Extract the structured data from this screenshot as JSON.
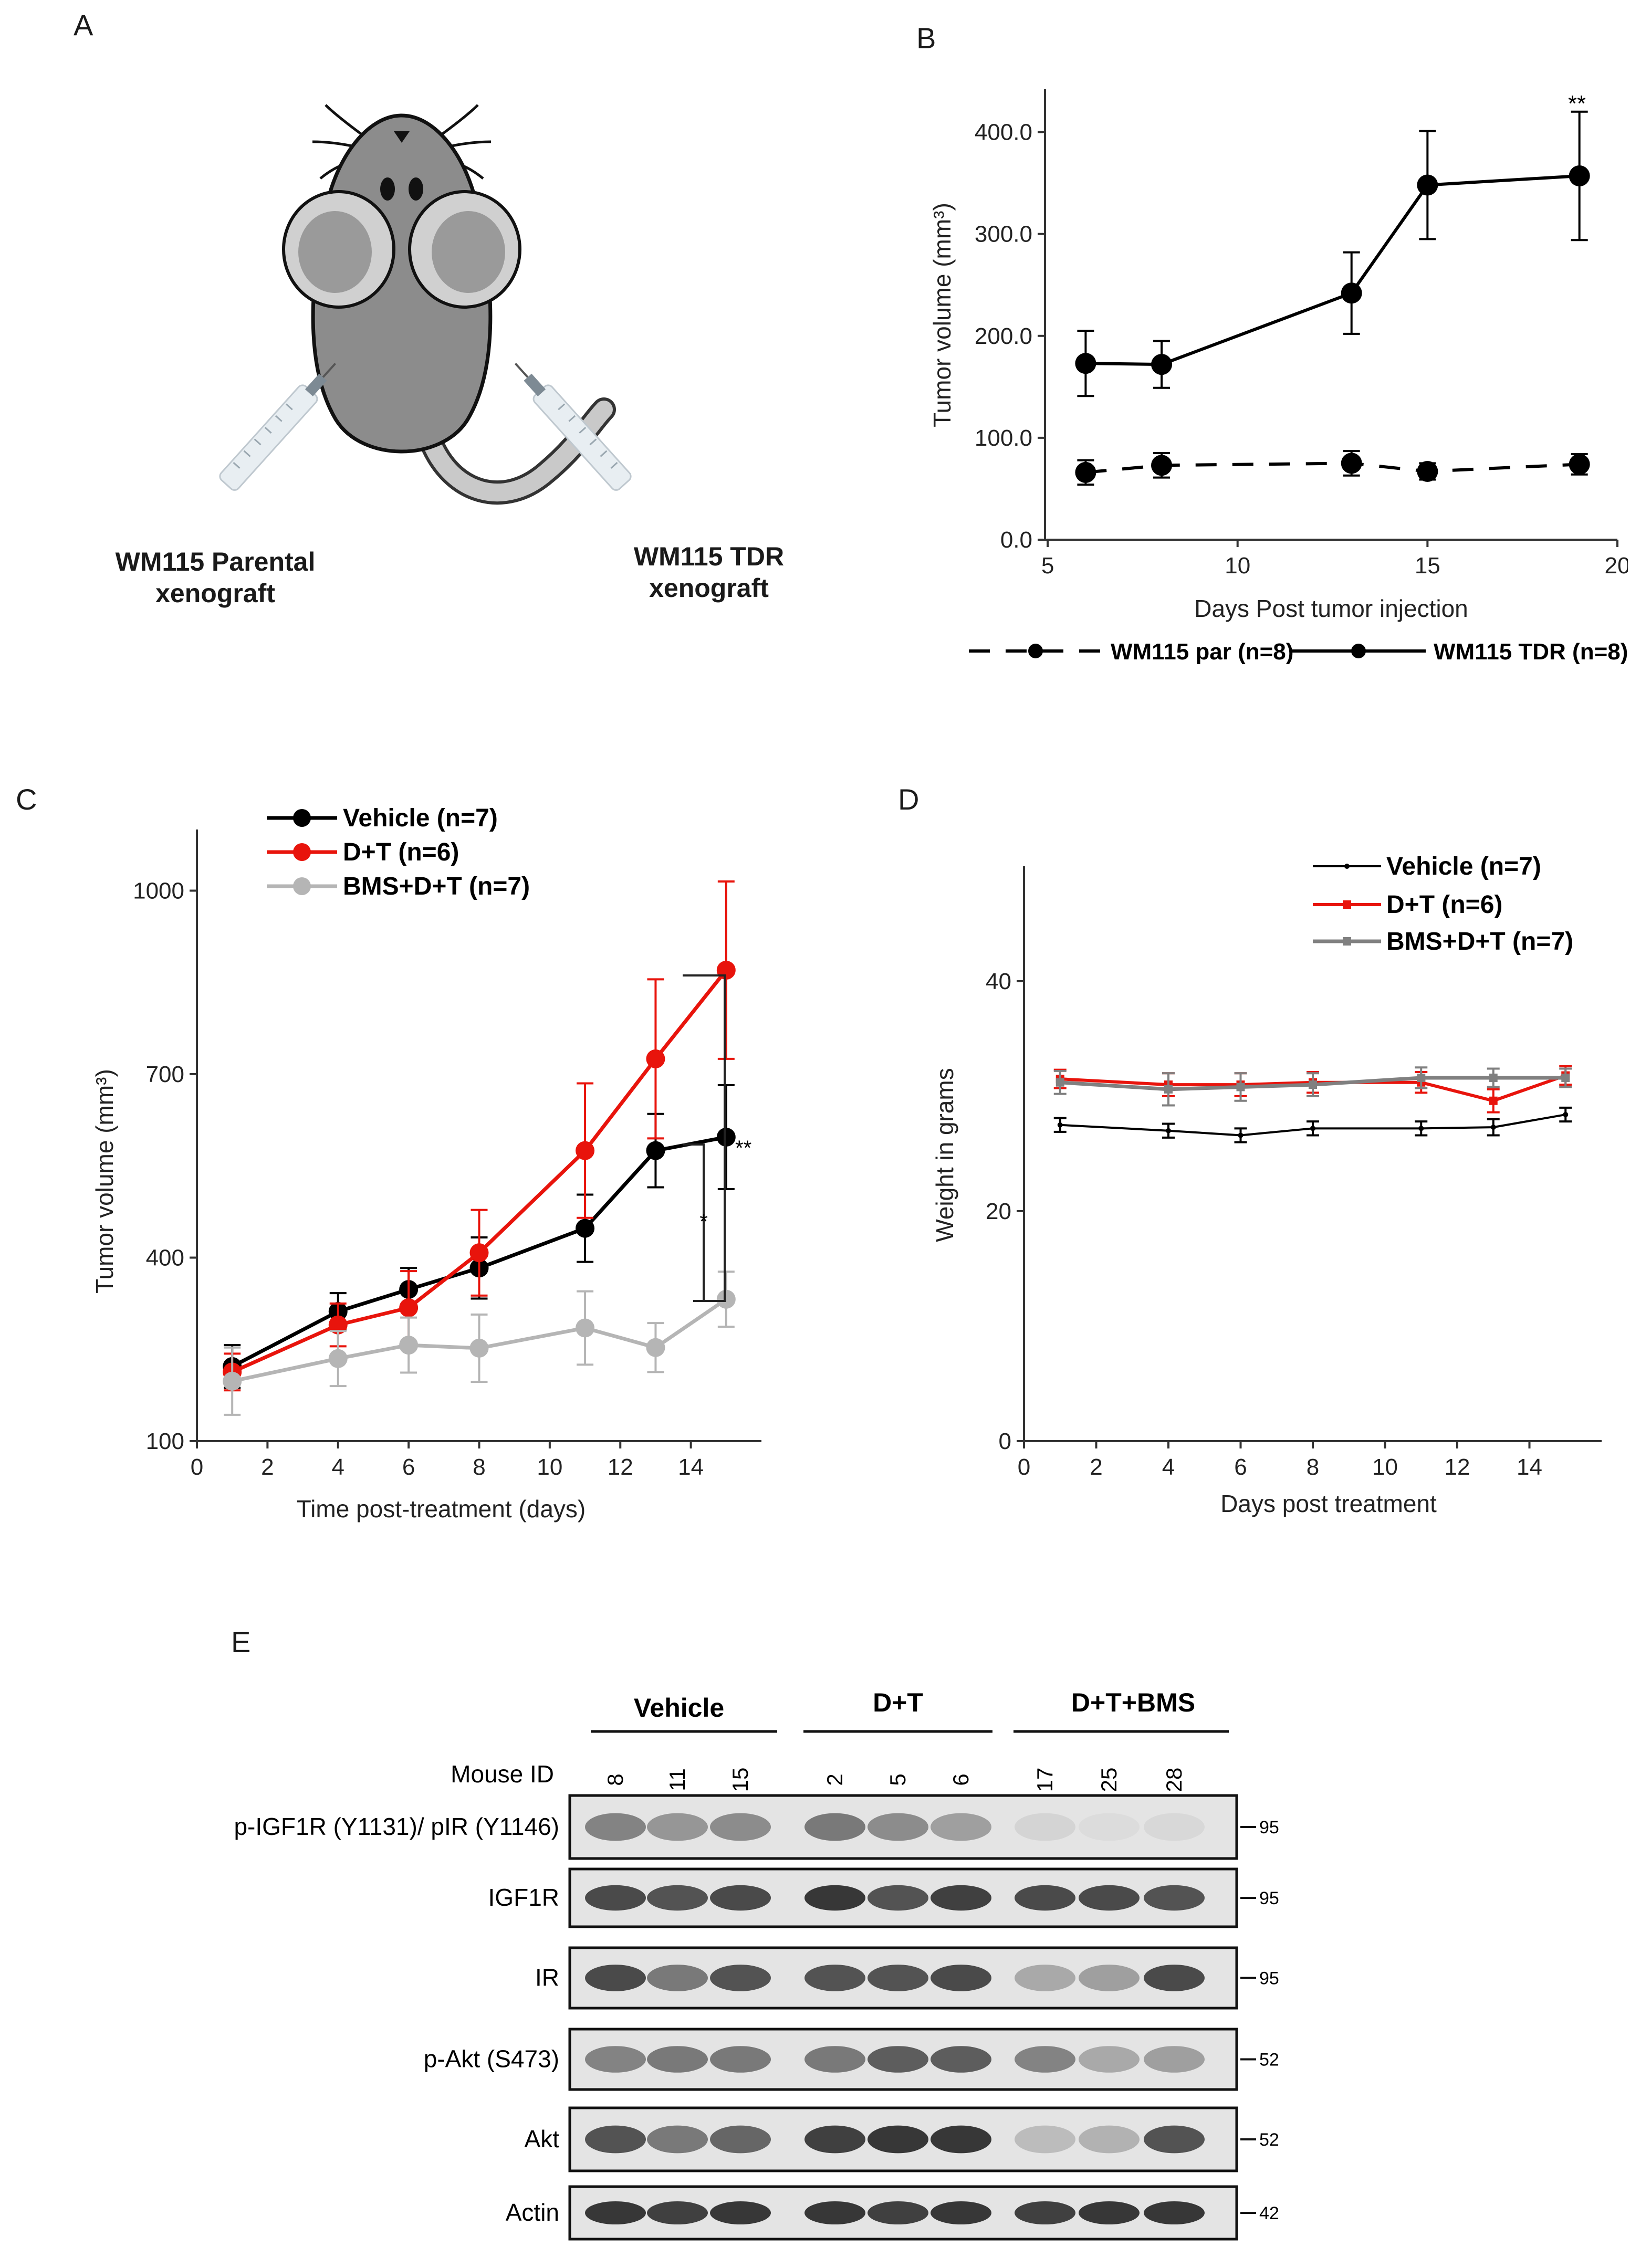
{
  "panels": {
    "a": {
      "letter": "A",
      "label_left": [
        "WM115 Parental",
        "xenograft"
      ],
      "label_right": [
        "WM115 TDR",
        "xenograft"
      ]
    },
    "b": {
      "letter": "B",
      "ylabel": "Tumor volume (mm³)",
      "xlabel": "Days Post tumor injection",
      "yticks": [
        "0.0",
        "100.0",
        "200.0",
        "300.0",
        "400.0"
      ],
      "xticks": [
        "5",
        "10",
        "15",
        "20"
      ],
      "significance": "**",
      "legend": [
        "WM115 par (n=8)",
        "WM115 TDR (n=8)"
      ]
    },
    "c": {
      "letter": "C",
      "ylabel": "Tumor volume (mm³)",
      "xlabel": "Time post-treatment (days)",
      "yticks": [
        "100",
        "400",
        "700",
        "1000"
      ],
      "xticks": [
        "0",
        "2",
        "4",
        "6",
        "8",
        "10",
        "12",
        "14"
      ],
      "sig_outer": "**",
      "sig_inner": "*",
      "legend": [
        "Vehicle (n=7)",
        "D+T (n=6)",
        "BMS+D+T (n=7)"
      ]
    },
    "d": {
      "letter": "D",
      "ylabel": "Weight in grams",
      "xlabel": "Days post treatment",
      "yticks": [
        "0",
        "20",
        "40"
      ],
      "xticks": [
        "0",
        "2",
        "4",
        "6",
        "8",
        "10",
        "12",
        "14"
      ],
      "legend": [
        "Vehicle (n=7)",
        "D+T (n=6)",
        "BMS+D+T (n=7)"
      ]
    },
    "e": {
      "letter": "E",
      "groups": [
        "Vehicle",
        "D+T",
        "D+T+BMS"
      ],
      "mouse_id_label": "Mouse ID",
      "mouse_ids": [
        "8",
        "11",
        "15",
        "2",
        "5",
        "6",
        "17",
        "25",
        "28"
      ],
      "blots": [
        {
          "label": "p-IGF1R (Y1131)/ pIR (Y1146)",
          "mw": "95"
        },
        {
          "label": "IGF1R",
          "mw": "95"
        },
        {
          "label": "IR",
          "mw": "95"
        },
        {
          "label": "p-Akt (S473)",
          "mw": "52"
        },
        {
          "label": "Akt",
          "mw": "52"
        },
        {
          "label": "Actin",
          "mw": "42"
        }
      ]
    }
  },
  "chart_data": [
    {
      "panel": "B",
      "type": "line",
      "xlabel": "Days Post tumor injection",
      "ylabel": "Tumor volume (mm3)",
      "xlim": [
        5,
        20
      ],
      "ylim": [
        0,
        450
      ],
      "series": [
        {
          "name": "WM115 par (n=8)",
          "style": "dashed",
          "color": "#000000",
          "x": [
            6,
            8,
            13,
            15,
            19
          ],
          "y": [
            66,
            73,
            75,
            67,
            74
          ],
          "err": [
            12,
            12,
            12,
            8,
            10
          ]
        },
        {
          "name": "WM115 TDR (n=8)",
          "style": "solid",
          "color": "#000000",
          "x": [
            6,
            8,
            13,
            15,
            19
          ],
          "y": [
            173,
            172,
            242,
            348,
            357
          ],
          "err": [
            32,
            23,
            40,
            53,
            63
          ]
        }
      ]
    },
    {
      "panel": "C",
      "type": "line",
      "xlabel": "Time post-treatment (days)",
      "ylabel": "Tumor volume (mm3)",
      "xlim": [
        0,
        16
      ],
      "ylim": [
        100,
        1100
      ],
      "series": [
        {
          "name": "Vehicle (n=7)",
          "color": "#000000",
          "x": [
            1,
            4,
            6,
            8,
            11,
            13,
            15
          ],
          "y": [
            222,
            312,
            348,
            383,
            448,
            575,
            597
          ],
          "err": [
            35,
            30,
            35,
            50,
            55,
            60,
            85
          ]
        },
        {
          "name": "D+T (n=6)",
          "color": "#e8140c",
          "x": [
            1,
            4,
            6,
            8,
            11,
            13,
            15
          ],
          "y": [
            213,
            290,
            318,
            408,
            575,
            725,
            870
          ],
          "err": [
            30,
            35,
            60,
            70,
            110,
            130,
            145
          ]
        },
        {
          "name": "BMS+D+T (n=7)",
          "color": "#b5b5b5",
          "x": [
            1,
            4,
            6,
            8,
            11,
            13,
            15
          ],
          "y": [
            198,
            235,
            257,
            252,
            285,
            253,
            332
          ],
          "err": [
            55,
            45,
            45,
            55,
            60,
            40,
            45
          ]
        }
      ]
    },
    {
      "panel": "D",
      "type": "line",
      "xlabel": "Days post treatment",
      "ylabel": "Weight in grams",
      "xlim": [
        0,
        16
      ],
      "ylim": [
        0,
        50
      ],
      "series": [
        {
          "name": "Vehicle (n=7)",
          "color": "#000000",
          "x": [
            1,
            4,
            6,
            8,
            11,
            13,
            15
          ],
          "y": [
            27.5,
            27.0,
            26.6,
            27.2,
            27.2,
            27.3,
            28.4
          ],
          "err": [
            0.6,
            0.6,
            0.6,
            0.6,
            0.6,
            0.7,
            0.6
          ]
        },
        {
          "name": "D+T (n=6)",
          "color": "#e8140c",
          "x": [
            1,
            4,
            6,
            8,
            11,
            13,
            15
          ],
          "y": [
            31.5,
            31.0,
            31.0,
            31.2,
            31.2,
            29.6,
            31.8
          ],
          "err": [
            0.8,
            1.0,
            1.0,
            0.9,
            0.9,
            1.0,
            0.8
          ]
        },
        {
          "name": "BMS+D+T (n=7)",
          "color": "#808080",
          "x": [
            1,
            4,
            6,
            8,
            11,
            13,
            15
          ],
          "y": [
            31.2,
            30.6,
            30.8,
            31.0,
            31.6,
            31.6,
            31.6
          ],
          "err": [
            1.0,
            1.4,
            1.2,
            1.0,
            0.9,
            0.8,
            0.8
          ]
        }
      ]
    }
  ]
}
